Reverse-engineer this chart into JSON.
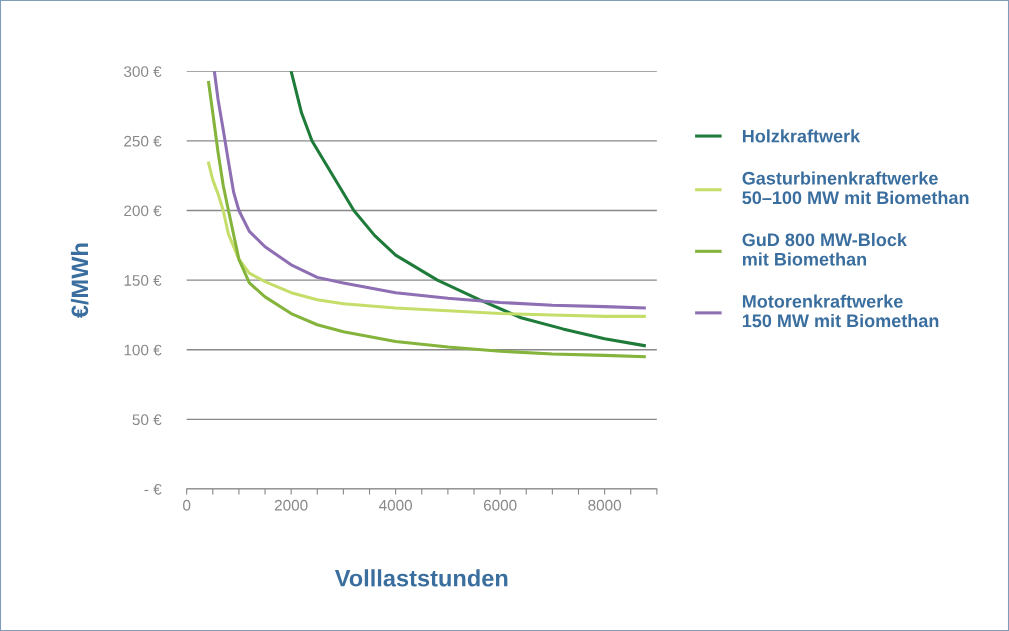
{
  "chart_data": {
    "type": "line",
    "xlabel": "Volllaststunden",
    "ylabel": "€/MWh",
    "xlim": [
      0,
      9000
    ],
    "ylim": [
      0,
      300
    ],
    "xticks": [
      0,
      {
        "value": 500,
        "label": null
      },
      {
        "value": 1000,
        "label": null
      },
      {
        "value": 1500,
        "label": null
      },
      2000,
      {
        "value": 2500,
        "label": null
      },
      {
        "value": 3000,
        "label": null
      },
      {
        "value": 3500,
        "label": null
      },
      4000,
      {
        "value": 4500,
        "label": null
      },
      {
        "value": 5000,
        "label": null
      },
      {
        "value": 5500,
        "label": null
      },
      6000,
      {
        "value": 6500,
        "label": null
      },
      {
        "value": 7000,
        "label": null
      },
      {
        "value": 7500,
        "label": null
      },
      8000,
      {
        "value": 8500,
        "label": null
      },
      {
        "value": 9000,
        "label": null
      }
    ],
    "yticks": [
      {
        "value": 0,
        "label": "- €"
      },
      {
        "value": 50,
        "label": "50 €"
      },
      {
        "value": 100,
        "label": "100 €"
      },
      {
        "value": 150,
        "label": "150 €"
      },
      {
        "value": 200,
        "label": "200 €"
      },
      {
        "value": 250,
        "label": "250 €"
      },
      {
        "value": 300,
        "label": "300 €"
      }
    ],
    "grid": "y",
    "legend": "right",
    "marker": "none",
    "line_style": "solid",
    "series": [
      {
        "name": "Holzkraftwerk",
        "color": "#1e7b3a",
        "x": [
          2000,
          2200,
          2400,
          2800,
          3200,
          3600,
          4000,
          4800,
          5600,
          6400,
          7200,
          8000,
          8760
        ],
        "values": [
          300,
          270,
          250,
          225,
          200,
          182,
          168,
          150,
          136,
          123,
          115,
          108,
          103
        ]
      },
      {
        "name": "Gasturbinenkraftwerke\n50–100 MW mit Biomethan",
        "color": "#c5de6a",
        "x": [
          420,
          500,
          600,
          700,
          800,
          1000,
          1200,
          1500,
          2000,
          2500,
          3000,
          4000,
          5000,
          6000,
          7000,
          8000,
          8760
        ],
        "values": [
          234,
          222,
          212,
          200,
          183,
          165,
          155,
          149,
          141,
          136,
          133,
          130,
          128,
          126,
          125,
          124,
          124
        ]
      },
      {
        "name": "GuD 800 MW-Block\nmit Biomethan",
        "color": "#84b43c",
        "x": [
          420,
          500,
          600,
          700,
          800,
          1000,
          1200,
          1500,
          2000,
          2500,
          3000,
          4000,
          5000,
          6000,
          7000,
          8000,
          8760
        ],
        "values": [
          292,
          270,
          242,
          218,
          200,
          165,
          148,
          138,
          126,
          118,
          113,
          106,
          102,
          99,
          97,
          96,
          95
        ]
      },
      {
        "name": "Motorenkraftwerke\n150 MW mit Biomethan",
        "color": "#8f6fb4",
        "x": [
          530,
          600,
          700,
          800,
          900,
          1000,
          1200,
          1500,
          2000,
          2500,
          3000,
          4000,
          5000,
          6000,
          7000,
          8000,
          8760
        ],
        "values": [
          300,
          280,
          258,
          235,
          213,
          200,
          185,
          174,
          161,
          152,
          148,
          141,
          137,
          134,
          132,
          131,
          130
        ]
      }
    ]
  }
}
